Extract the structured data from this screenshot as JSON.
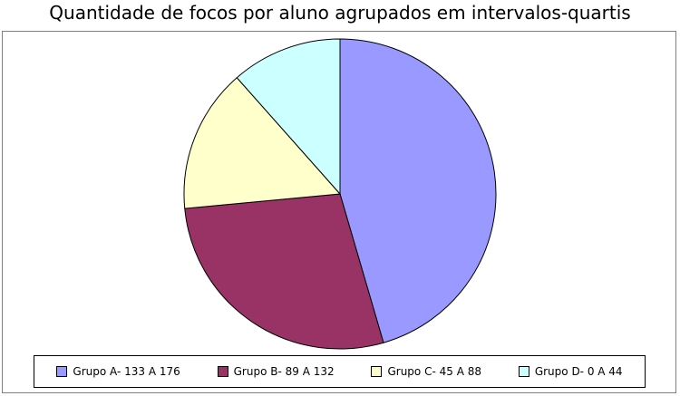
{
  "chart_data": {
    "type": "pie",
    "title": "Quantidade de focos por aluno agrupados em intervalos-quartis",
    "start_angle_deg": 0,
    "direction": "clockwise",
    "legend_position": "bottom",
    "slices": [
      {
        "label": "Grupo A- 133 A 176",
        "value": 45.5,
        "color": "#9999ff"
      },
      {
        "label": "Grupo B- 89 A 132",
        "value": 28.0,
        "color": "#993366"
      },
      {
        "label": "Grupo C- 45 A 88",
        "value": 15.0,
        "color": "#ffffcc"
      },
      {
        "label": "Grupo D- 0 A 44",
        "value": 11.5,
        "color": "#ccffff"
      }
    ]
  }
}
